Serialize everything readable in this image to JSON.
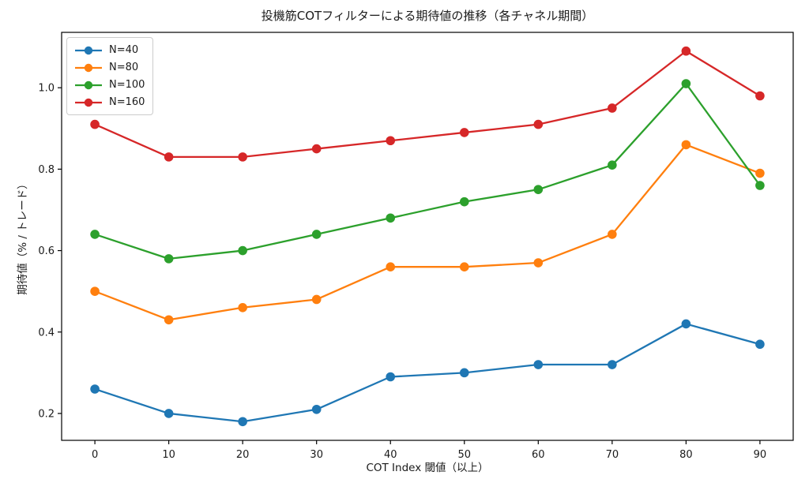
{
  "chart_data": {
    "type": "line",
    "title": "投機筋COTフィルターによる期待値の推移（各チャネル期間）",
    "xlabel": "COT Index 閾値（以上）",
    "ylabel": "期待値（% / トレード）",
    "x": [
      0,
      10,
      20,
      30,
      40,
      50,
      60,
      70,
      80,
      90
    ],
    "series": [
      {
        "name": "N=40",
        "color": "#1f77b4",
        "values": [
          0.26,
          0.2,
          0.18,
          0.21,
          0.29,
          0.3,
          0.32,
          0.32,
          0.42,
          0.37
        ]
      },
      {
        "name": "N=80",
        "color": "#ff7f0e",
        "values": [
          0.5,
          0.43,
          0.46,
          0.48,
          0.56,
          0.56,
          0.57,
          0.64,
          0.86,
          0.79
        ]
      },
      {
        "name": "N=100",
        "color": "#2ca02c",
        "values": [
          0.64,
          0.58,
          0.6,
          0.64,
          0.68,
          0.72,
          0.75,
          0.81,
          1.01,
          0.76
        ]
      },
      {
        "name": "N=160",
        "color": "#d62728",
        "values": [
          0.91,
          0.83,
          0.83,
          0.85,
          0.87,
          0.89,
          0.91,
          0.95,
          1.09,
          0.98
        ]
      }
    ],
    "xticks": [
      0,
      10,
      20,
      30,
      40,
      50,
      60,
      70,
      80,
      90
    ],
    "yticks": [
      0.2,
      0.4,
      0.6,
      0.8,
      1.0
    ],
    "xlim": [
      -4.5,
      94.5
    ],
    "ylim": [
      0.134,
      1.136
    ],
    "grid": false,
    "marker": "o",
    "legend_position": "upper left",
    "axis_color": "#000000",
    "text_color": "#1a1a1a",
    "background": "#ffffff"
  }
}
